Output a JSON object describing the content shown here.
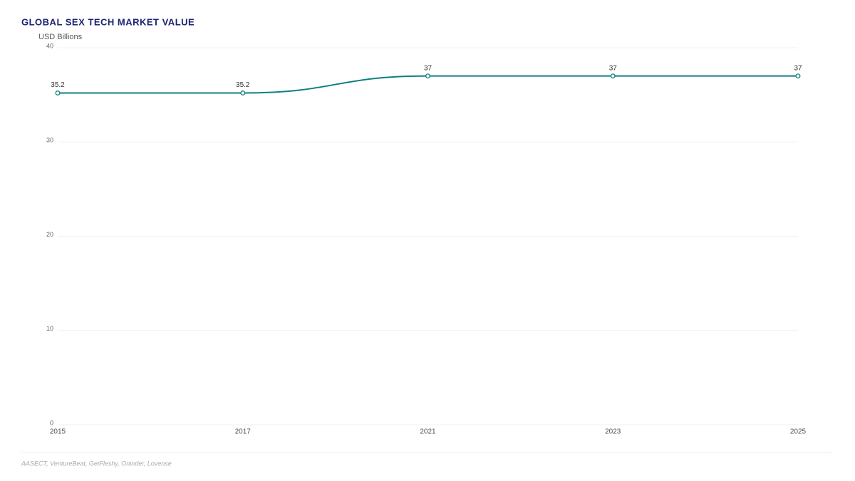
{
  "chart_data": {
    "type": "line",
    "title": "GLOBAL SEX TECH MARKET VALUE",
    "y_label": "USD Billions",
    "categories": [
      "2015",
      "2017",
      "2021",
      "2023",
      "2025"
    ],
    "values": [
      35.2,
      35.2,
      37,
      37,
      37
    ],
    "color": "#0e7f80",
    "ylim": [
      0,
      40
    ],
    "yticks": [
      0,
      10,
      20,
      30,
      40
    ],
    "grid": true,
    "smooth": true,
    "source": "AASECT, VentureBeat, GetFleshy, Oninder, Lovense"
  }
}
